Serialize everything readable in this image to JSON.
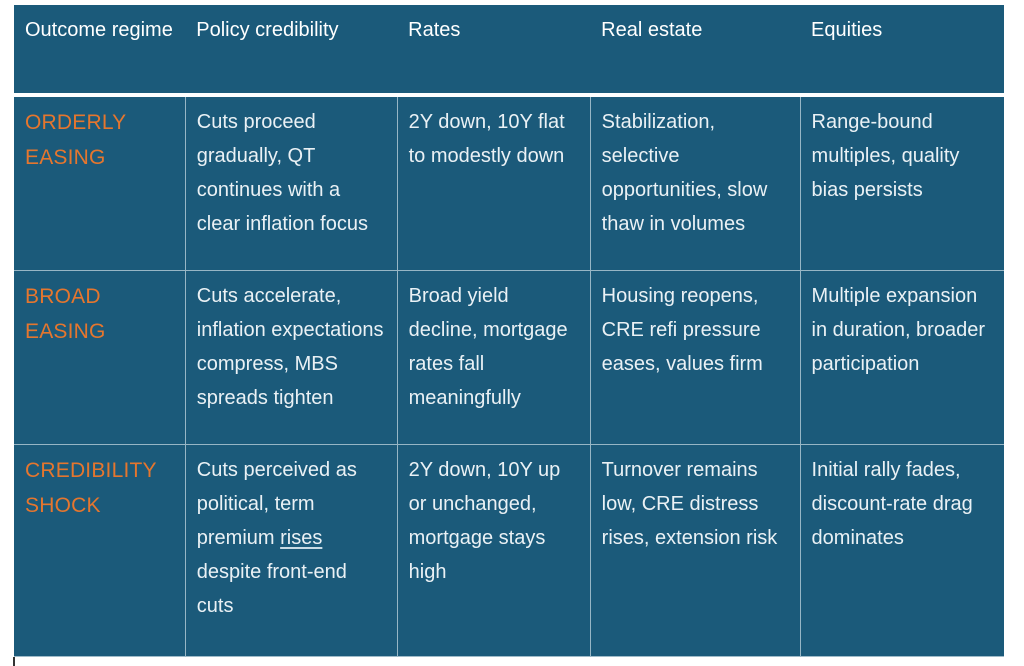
{
  "colors": {
    "table_background": "#1B5A7A",
    "accent_orange": "#E5762E",
    "header_text": "#FFFFFF",
    "body_text": "#EAF1F5",
    "divider": "rgba(235,243,247,0.6)",
    "header_rule": "#FFFFFF"
  },
  "table": {
    "columns": [
      "Outcome regime",
      "Policy credibility",
      "Rates",
      "Real estate",
      "Equities"
    ],
    "rows": [
      {
        "regime": "ORDERLY EASING",
        "cells": [
          "Cuts proceed gradually, QT continues with a clear inflation focus",
          "2Y down, 10Y flat to modestly down",
          "Stabilization, selective opportunities, slow thaw in volumes",
          "Range-bound multiples, quality bias persists"
        ]
      },
      {
        "regime": "BROAD EASING",
        "cells": [
          "Cuts accelerate, inflation expectations compress, MBS spreads tighten",
          "Broad yield decline, mortgage rates fall meaningfully",
          "Housing reopens, CRE refi pressure eases, values firm",
          "Multiple expansion in duration, broader participation"
        ]
      },
      {
        "regime": "CREDIBILITY SHOCK",
        "cells": [
          {
            "text": "Cuts perceived as political, term premium rises despite front-end cuts",
            "underline_word": "rises"
          },
          "2Y down, 10Y up or unchanged, mortgage stays high",
          "Turnover remains low, CRE distress rises, extension risk",
          "Initial rally fades, discount-rate drag dominates"
        ]
      }
    ]
  }
}
